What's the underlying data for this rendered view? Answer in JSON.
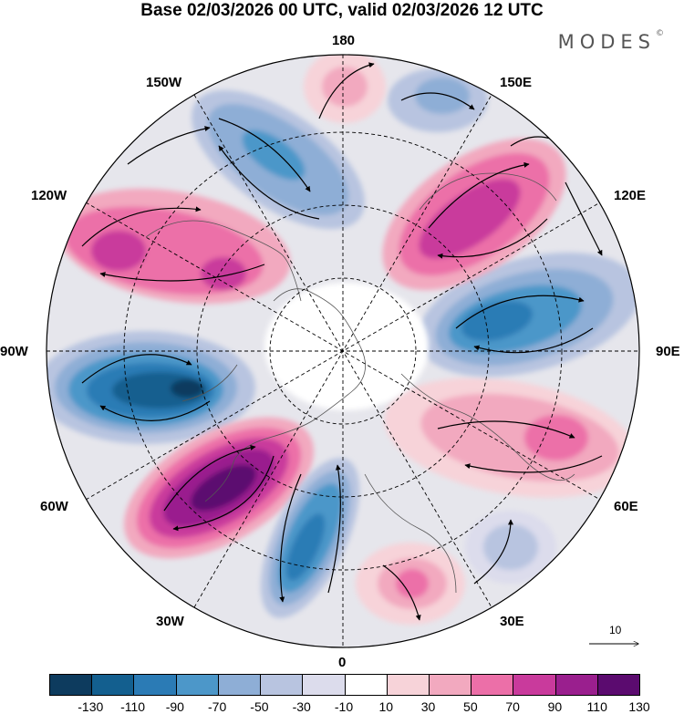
{
  "title": "Base 02/03/2026 00 UTC, valid 02/03/2026 12 UTC",
  "brand": {
    "name": "MODES",
    "mark": "©"
  },
  "longitude_labels": [
    "180",
    "150E",
    "120E",
    "90E",
    "60E",
    "30E",
    "0",
    "30W",
    "60W",
    "90W",
    "120W",
    "150W"
  ],
  "anomaly_centers": [
    {
      "sign": "negative",
      "value_band": "-130 to -90",
      "region": "90W"
    },
    {
      "sign": "positive",
      "value_band": "110 to 130",
      "region": "60W"
    },
    {
      "sign": "negative",
      "value_band": "-90 to -70",
      "region": "90E"
    },
    {
      "sign": "positive",
      "value_band": "70 to 90",
      "region": "120E"
    },
    {
      "sign": "positive",
      "value_band": "50 to 70",
      "region": "120W"
    },
    {
      "sign": "negative",
      "value_band": "-90 to -70",
      "region": "30W"
    },
    {
      "sign": "negative",
      "value_band": "-50 to -30",
      "region": "150W"
    },
    {
      "sign": "positive",
      "value_band": "30 to 50",
      "region": "60E"
    },
    {
      "sign": "positive",
      "value_band": "50 to 70",
      "region": "30E"
    }
  ],
  "vector_scale": {
    "value": "10"
  },
  "colorbar": {
    "ticks": [
      "-130",
      "-110",
      "-90",
      "-70",
      "-50",
      "-30",
      "-10",
      "10",
      "30",
      "50",
      "70",
      "90",
      "110",
      "130"
    ],
    "colors": [
      "#0d3b5e",
      "#135f8f",
      "#2b7bb5",
      "#4c97c9",
      "#8eaed6",
      "#b8c4e0",
      "#dcdcec",
      "#ffffff",
      "#f7d3d9",
      "#f2a9bf",
      "#ec6fa8",
      "#c93a9c",
      "#9a1f8e",
      "#5b0b6f"
    ]
  }
}
